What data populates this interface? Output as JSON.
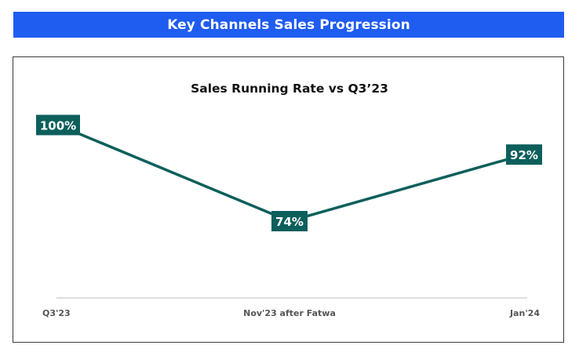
{
  "header": {
    "title": "Key Channels Sales Progression"
  },
  "colors": {
    "banner": "#1f5cf0",
    "series": "#0d5f5c",
    "axis": "#c9c9c9",
    "tick_text": "#555555"
  },
  "chart_data": {
    "type": "line",
    "title": "Sales Running Rate vs Q3’23",
    "categories": [
      "Q3'23",
      "Nov'23 after Fatwa",
      "Jan'24"
    ],
    "series": [
      {
        "name": "Sales Running Rate vs Q3'23",
        "values": [
          100,
          74,
          92
        ],
        "labels": [
          "100%",
          "74%",
          "92%"
        ]
      }
    ],
    "xlabel": "",
    "ylabel": "",
    "ylim": [
      60,
      105
    ],
    "grid": false,
    "legend": "none"
  }
}
